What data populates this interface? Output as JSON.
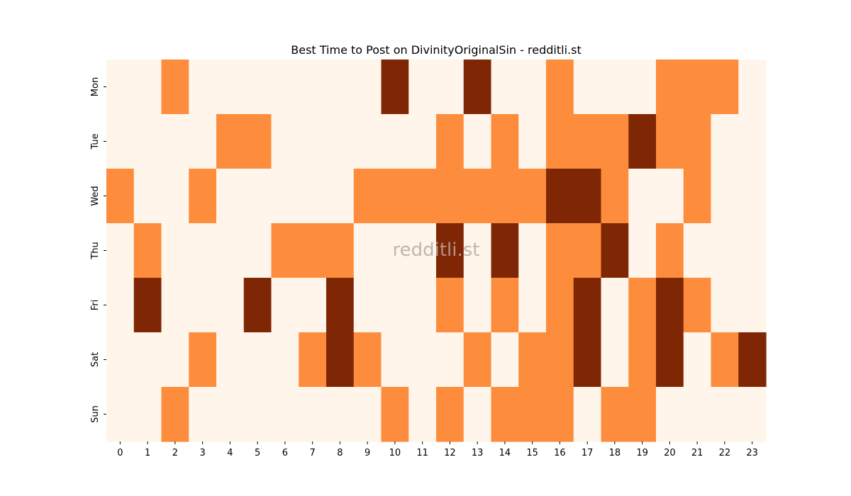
{
  "chart_data": {
    "type": "heatmap",
    "title": "Best Time to Post on DivinityOriginalSin - redditli.st",
    "watermark": "redditli.st",
    "x_categories": [
      "0",
      "1",
      "2",
      "3",
      "4",
      "5",
      "6",
      "7",
      "8",
      "9",
      "10",
      "11",
      "12",
      "13",
      "14",
      "15",
      "16",
      "17",
      "18",
      "19",
      "20",
      "21",
      "22",
      "23"
    ],
    "y_categories": [
      "Mon",
      "Tue",
      "Wed",
      "Thu",
      "Fri",
      "Sat",
      "Sun"
    ],
    "values": [
      [
        0,
        0,
        1,
        0,
        0,
        0,
        0,
        0,
        0,
        0,
        2,
        0,
        0,
        2,
        0,
        0,
        1,
        0,
        0,
        0,
        1,
        1,
        1,
        0
      ],
      [
        0,
        0,
        0,
        0,
        1,
        1,
        0,
        0,
        0,
        0,
        0,
        0,
        1,
        0,
        1,
        0,
        1,
        1,
        1,
        2,
        1,
        1,
        0,
        0
      ],
      [
        1,
        0,
        0,
        1,
        0,
        0,
        0,
        0,
        0,
        1,
        1,
        1,
        1,
        1,
        1,
        1,
        2,
        2,
        1,
        0,
        0,
        1,
        0,
        0
      ],
      [
        0,
        1,
        0,
        0,
        0,
        0,
        1,
        1,
        1,
        0,
        0,
        0,
        2,
        0,
        2,
        0,
        1,
        1,
        2,
        0,
        1,
        0,
        0,
        0
      ],
      [
        0,
        2,
        0,
        0,
        0,
        2,
        0,
        0,
        2,
        0,
        0,
        0,
        1,
        0,
        1,
        0,
        1,
        2,
        0,
        1,
        2,
        1,
        0,
        0
      ],
      [
        0,
        0,
        0,
        1,
        0,
        0,
        0,
        1,
        2,
        1,
        0,
        0,
        0,
        1,
        0,
        1,
        1,
        2,
        0,
        1,
        2,
        0,
        1,
        2
      ],
      [
        0,
        0,
        1,
        0,
        0,
        0,
        0,
        0,
        0,
        0,
        1,
        0,
        1,
        0,
        1,
        1,
        1,
        0,
        1,
        1,
        0,
        0,
        0,
        0
      ]
    ],
    "value_range": [
      0,
      2
    ],
    "colors": [
      "#fff5eb",
      "#fd8d3c",
      "#7f2704"
    ],
    "grid": false,
    "legend": "none"
  }
}
